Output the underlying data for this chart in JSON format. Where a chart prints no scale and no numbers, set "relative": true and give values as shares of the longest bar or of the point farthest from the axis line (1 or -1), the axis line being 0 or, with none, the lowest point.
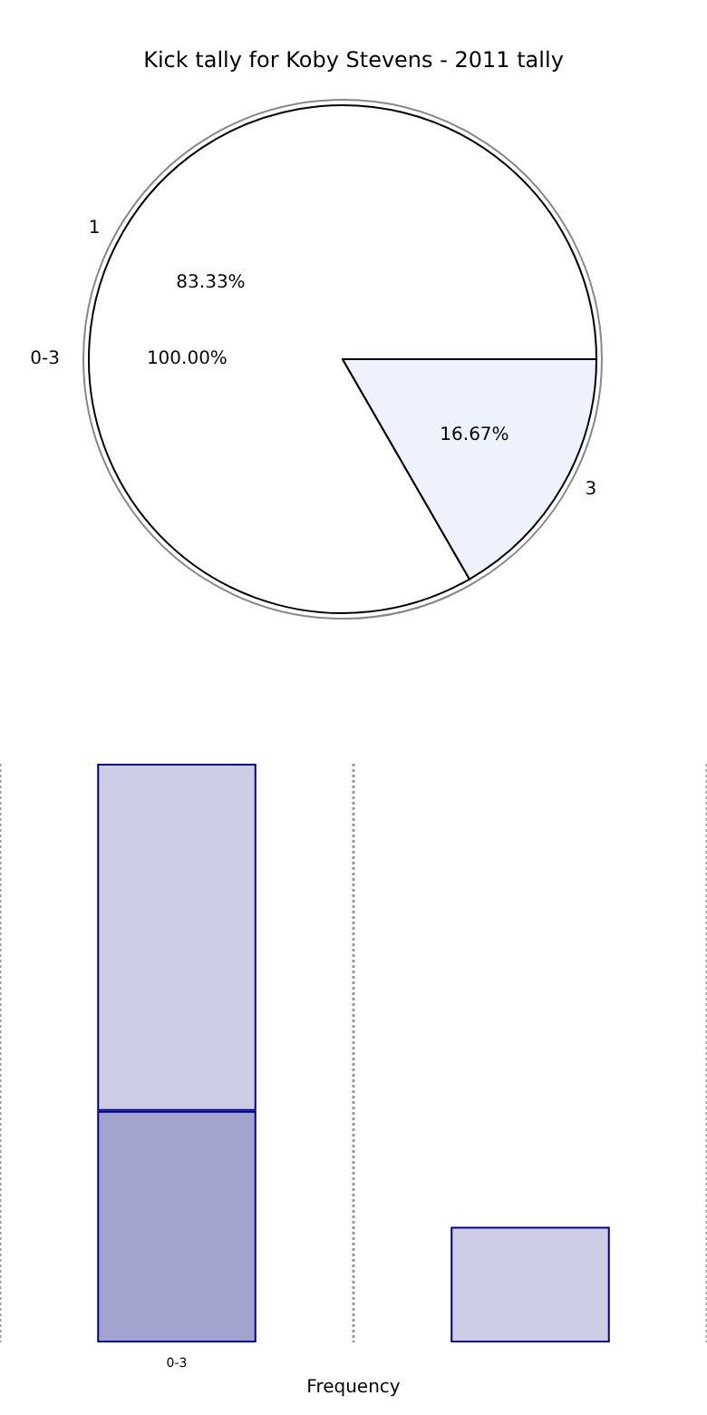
{
  "chart_data": [
    {
      "type": "pie",
      "title": "Kick tally for Koby Stevens - 2011 tally",
      "categories": [
        "0-3"
      ],
      "values": [
        100
      ],
      "colors": [
        "#ffffff"
      ],
      "value_labels": [
        "100.00%"
      ]
    },
    {
      "type": "pie",
      "categories": [
        "1",
        "3"
      ],
      "values": [
        83.33,
        16.67
      ],
      "colors": [
        "#ffffff",
        "#eef2fc"
      ],
      "value_labels": [
        "83.33%",
        "16.67%"
      ]
    },
    {
      "type": "bar",
      "xlabel": "Frequency",
      "categories": [
        "0-3",
        null
      ],
      "stacked": true,
      "relative": true,
      "grid": "x",
      "tick_labels": "x",
      "series": [
        {
          "color": "#a3a3d0",
          "values": [
            0.4,
            null
          ]
        },
        {
          "color": "#cdcde5",
          "values": [
            0.6,
            0.2
          ]
        }
      ]
    }
  ]
}
